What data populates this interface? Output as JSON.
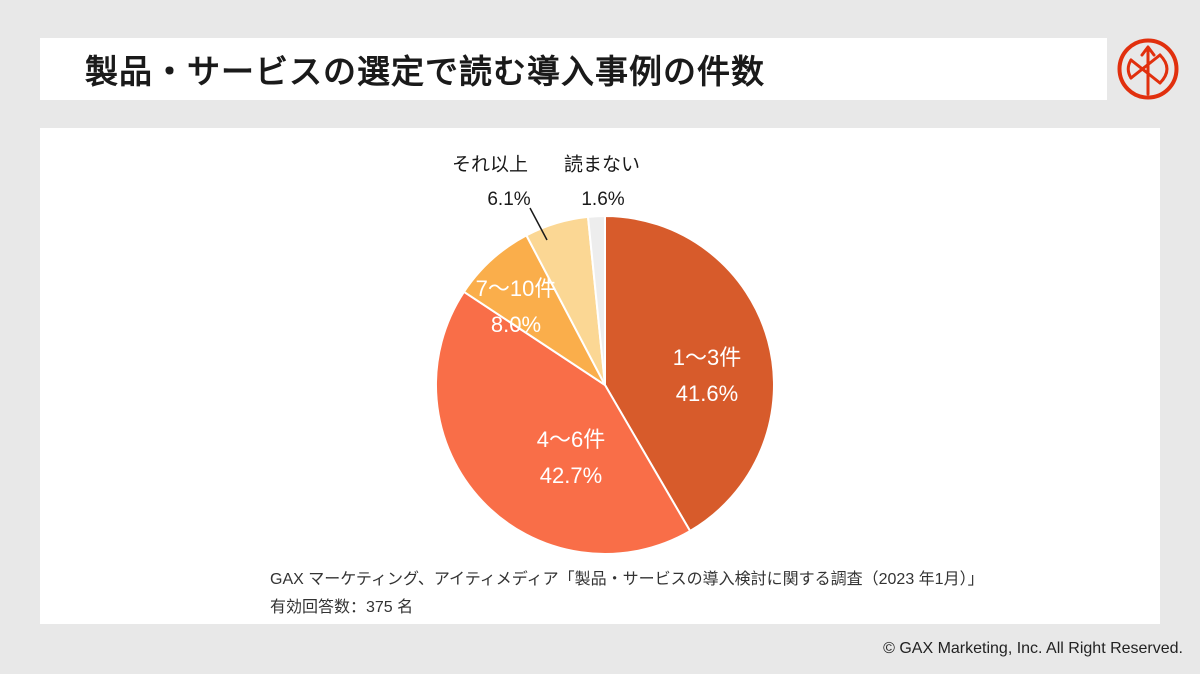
{
  "page": {
    "background_color": "#E8E8E8",
    "title": "製品・サービスの選定で読む導入事例の件数",
    "footer": "© GAX Marketing, Inc. All Right Reserved."
  },
  "logo": {
    "name": "gax-brand-mark",
    "color": "#E1300E"
  },
  "source": {
    "line1": "GAX マーケティング、アイティメディア「製品・サービスの導入検討に関する調査（2023 年1月）」",
    "line2": "有効回答数：375 名"
  },
  "chart_data": {
    "type": "pie",
    "title": "製品・サービスの選定で読む導入事例の件数",
    "start_angle_deg": 0,
    "direction": "clockwise",
    "legend_position": "none",
    "slices": [
      {
        "label": "1〜3件",
        "value": 41.6,
        "pct_label": "41.6%",
        "color": "#D75B2B",
        "label_position": "inside"
      },
      {
        "label": "4〜6件",
        "value": 42.7,
        "pct_label": "42.7%",
        "color": "#F96E48",
        "label_position": "inside"
      },
      {
        "label": "7〜10件",
        "value": 8.0,
        "pct_label": "8.0%",
        "color": "#FAAE4B",
        "label_position": "inside"
      },
      {
        "label": "それ以上",
        "value": 6.1,
        "pct_label": "6.1%",
        "color": "#FBD794",
        "label_position": "outside"
      },
      {
        "label": "読まない",
        "value": 1.6,
        "pct_label": "1.6%",
        "color": "#EDEDED",
        "label_position": "outside"
      }
    ]
  }
}
